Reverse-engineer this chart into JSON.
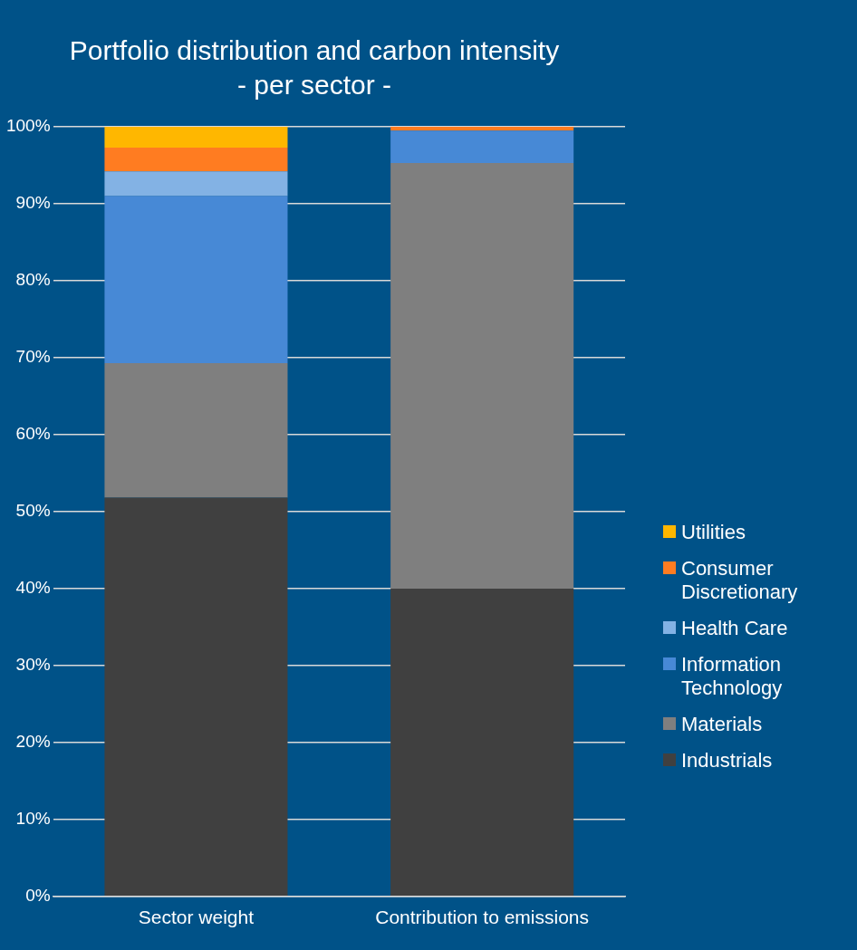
{
  "chart_data": {
    "type": "bar",
    "title": "Portfolio distribution and carbon intensity",
    "subtitle": "- per sector -",
    "categories": [
      "Sector weight",
      "Contribution to emissions"
    ],
    "stacked": true,
    "series": [
      {
        "name": "Industrials",
        "color": "#404040",
        "values": [
          51.8,
          40
        ]
      },
      {
        "name": "Materials",
        "color": "#7f7f7f",
        "values": [
          17.5,
          55.3
        ]
      },
      {
        "name": "Information Technology",
        "color": "#4789d6",
        "values": [
          21.7,
          4.2
        ]
      },
      {
        "name": "Health Care",
        "color": "#83b2e4",
        "values": [
          3.2,
          0
        ]
      },
      {
        "name": "Consumer Discretionary",
        "color": "#ff7c21",
        "values": [
          3.1,
          0.5
        ]
      },
      {
        "name": "Utilities",
        "color": "#ffb700",
        "values": [
          2.7,
          0
        ]
      }
    ],
    "ylim": [
      0,
      100
    ],
    "yticks": [
      {
        "value": 0,
        "label": "0%"
      },
      {
        "value": 10,
        "label": "10%"
      },
      {
        "value": 20,
        "label": "20%"
      },
      {
        "value": 30,
        "label": "30%"
      },
      {
        "value": 40,
        "label": "40%"
      },
      {
        "value": 50,
        "label": "50%"
      },
      {
        "value": 60,
        "label": "60%"
      },
      {
        "value": 70,
        "label": "70%"
      },
      {
        "value": 80,
        "label": "80%"
      },
      {
        "value": 90,
        "label": "90%"
      },
      {
        "value": 100,
        "label": "100%"
      }
    ],
    "grid": "y",
    "legend": "right"
  }
}
